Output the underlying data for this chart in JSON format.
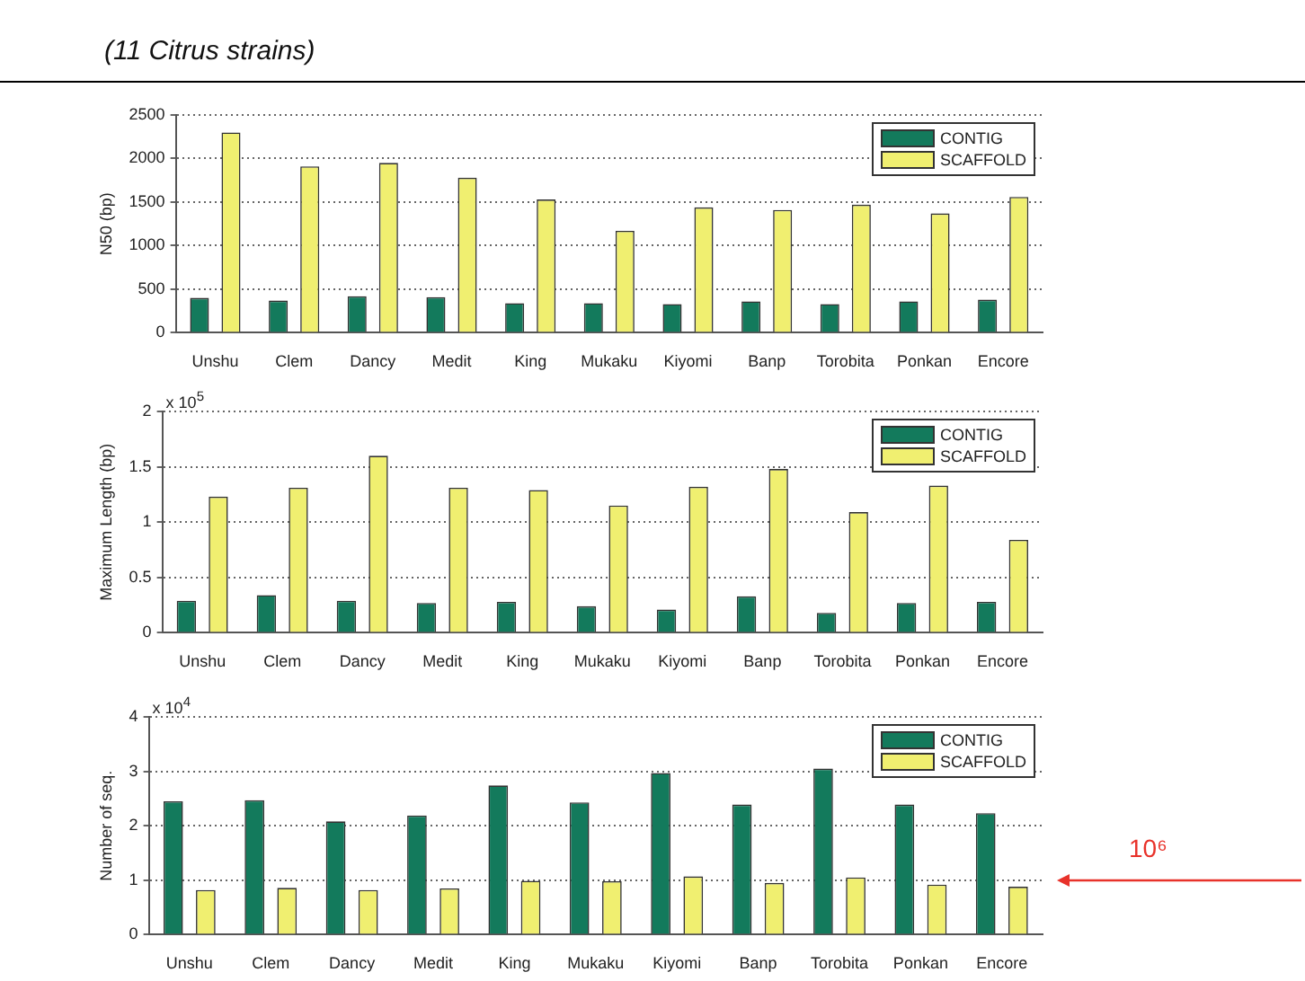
{
  "chart_data": [
    {
      "type": "bar",
      "title": "(11 Citrus strains)",
      "ylabel": "N50 (bp)",
      "categories": [
        "Unshu",
        "Clem",
        "Dancy",
        "Medit",
        "King",
        "Mukaku",
        "Kiyomi",
        "Banp",
        "Torobita",
        "Ponkan",
        "Encore"
      ],
      "series": [
        {
          "name": "CONTIG",
          "color": "#137a5c",
          "values": [
            400,
            370,
            420,
            410,
            340,
            340,
            330,
            360,
            330,
            360,
            380
          ]
        },
        {
          "name": "SCAFFOLD",
          "color": "#f0ef70",
          "values": [
            2300,
            1910,
            1950,
            1780,
            1530,
            1170,
            1440,
            1410,
            1470,
            1370,
            1560
          ]
        }
      ],
      "ylim": [
        0,
        2500
      ],
      "yticks": [
        0,
        500,
        1000,
        1500,
        2000,
        2500
      ],
      "grid": "y",
      "legend": "top right"
    },
    {
      "type": "bar",
      "ylabel": "Maximum Length (bp)",
      "annotations": [
        "x 10$^{5}$"
      ],
      "categories": [
        "Unshu",
        "Clem",
        "Dancy",
        "Medit",
        "King",
        "Mukaku",
        "Kiyomi",
        "Banp",
        "Torobita",
        "Ponkan",
        "Encore"
      ],
      "series": [
        {
          "name": "CONTIG",
          "color": "#137a5c",
          "values": [
            0.29,
            0.34,
            0.29,
            0.27,
            0.28,
            0.24,
            0.21,
            0.33,
            0.18,
            0.27,
            0.28
          ]
        },
        {
          "name": "SCAFFOLD",
          "color": "#f0ef70",
          "values": [
            1.23,
            1.31,
            1.6,
            1.31,
            1.29,
            1.15,
            1.32,
            1.48,
            1.09,
            1.33,
            0.84
          ]
        }
      ],
      "ylim": [
        0,
        2
      ],
      "yticks": [
        0,
        0.5,
        1,
        1.5,
        2
      ],
      "grid": "y",
      "legend": "top right"
    },
    {
      "type": "bar",
      "ylabel": "Number of seq.",
      "annotations": [
        "x 10$^{4}$",
        "10⁶"
      ],
      "categories": [
        "Unshu",
        "Clem",
        "Dancy",
        "Medit",
        "King",
        "Mukaku",
        "Kiyomi",
        "Banp",
        "Torobita",
        "Ponkan",
        "Encore"
      ],
      "series": [
        {
          "name": "CONTIG",
          "color": "#137a5c",
          "values": [
            2.45,
            2.47,
            2.08,
            2.19,
            2.74,
            2.43,
            2.97,
            2.39,
            3.05,
            2.39,
            2.23
          ]
        },
        {
          "name": "SCAFFOLD",
          "color": "#f0ef70",
          "values": [
            0.82,
            0.86,
            0.82,
            0.85,
            0.99,
            0.98,
            1.07,
            0.95,
            1.05,
            0.92,
            0.88
          ]
        }
      ],
      "ylim": [
        0,
        4
      ],
      "yticks": [
        0,
        1,
        2,
        3,
        4
      ],
      "grid": "y",
      "legend": "top right"
    }
  ]
}
